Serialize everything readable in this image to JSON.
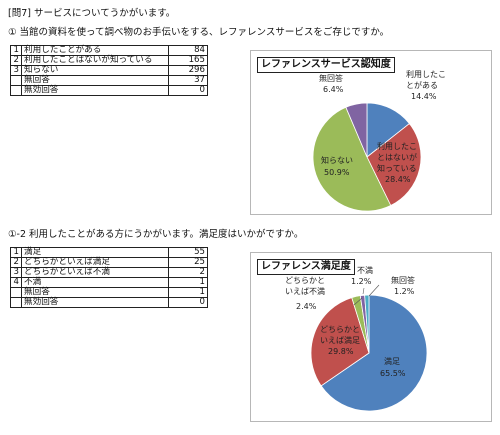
{
  "heading": "[問7] サービスについてうかがいます。",
  "q1": {
    "question": "① 当館の資料を使って調べ物のお手伝いをする、レファレンスサービスをご存じですか。",
    "rows": [
      {
        "no": "1",
        "label": "利用したことがある",
        "value": "84"
      },
      {
        "no": "2",
        "label": "利用したことはないが知っている",
        "value": "165"
      },
      {
        "no": "3",
        "label": "知らない",
        "value": "296"
      },
      {
        "no": "",
        "label": "無回答",
        "value": "37"
      },
      {
        "no": "",
        "label": "無効回答",
        "value": "0"
      }
    ]
  },
  "q2": {
    "question": "①-2 利用したことがある方にうかがいます。満足度はいかがですか。",
    "rows": [
      {
        "no": "1",
        "label": "満足",
        "value": "55"
      },
      {
        "no": "2",
        "label": "どちらかといえば満足",
        "value": "25"
      },
      {
        "no": "3",
        "label": "どちらかといえば不満",
        "value": "2"
      },
      {
        "no": "4",
        "label": "不満",
        "value": "1"
      },
      {
        "no": "",
        "label": "無回答",
        "value": "1"
      },
      {
        "no": "",
        "label": "無効回答",
        "value": "0"
      }
    ]
  },
  "chart_data": [
    {
      "type": "pie",
      "title": "レファレンスサービス認知度",
      "slices": [
        {
          "label": "利用したことがある",
          "value": 14.4,
          "text": "14.4%",
          "color": "#4f81bd"
        },
        {
          "label": "利用したことはないが知っている",
          "value": 28.4,
          "text": "28.4%",
          "color": "#c0504d"
        },
        {
          "label": "知らない",
          "value": 50.9,
          "text": "50.9%",
          "color": "#9bbb59"
        },
        {
          "label": "無回答",
          "value": 6.4,
          "text": "6.4%",
          "color": "#8064a2"
        }
      ]
    },
    {
      "type": "pie",
      "title": "レファレンス満足度",
      "slices": [
        {
          "label": "満足",
          "value": 65.5,
          "text": "65.5%",
          "color": "#4f81bd"
        },
        {
          "label": "どちらかといえば満足",
          "value": 29.8,
          "text": "29.8%",
          "color": "#c0504d"
        },
        {
          "label": "どちらかといえば不満",
          "value": 2.4,
          "text": "2.4%",
          "color": "#9bbb59"
        },
        {
          "label": "不満",
          "value": 1.2,
          "text": "1.2%",
          "color": "#8064a2"
        },
        {
          "label": "無回答",
          "value": 1.2,
          "text": "1.2%",
          "color": "#4bacc6"
        }
      ]
    }
  ]
}
